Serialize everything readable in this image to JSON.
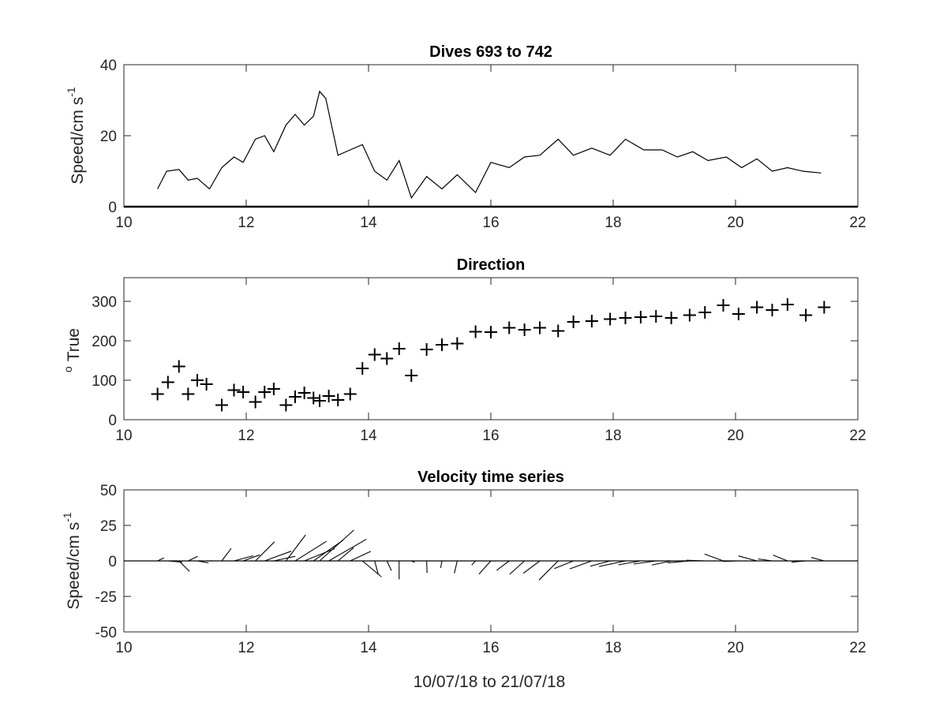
{
  "chart_data": [
    {
      "type": "line",
      "title": "Dives 693 to 742",
      "ylabel": "Speed/cm s",
      "ylabel_superscript": "-1",
      "xlim": [
        10,
        22
      ],
      "ylim": [
        0,
        40
      ],
      "xticks": [
        "10",
        "12",
        "14",
        "16",
        "18",
        "20",
        "22"
      ],
      "yticks": [
        "0",
        "20",
        "40"
      ],
      "series": [
        {
          "x": [
            10.55,
            10.7,
            10.9,
            11.05,
            11.2,
            11.4,
            11.6,
            11.8,
            11.95,
            12.15,
            12.3,
            12.45,
            12.65,
            12.8,
            12.95,
            13.1,
            13.2,
            13.3,
            13.5,
            13.7,
            13.9,
            14.1,
            14.3,
            14.5,
            14.7,
            14.95,
            15.2,
            15.45,
            15.75,
            16.0,
            16.3,
            16.55,
            16.8,
            17.1,
            17.35,
            17.65,
            17.95,
            18.2,
            18.5,
            18.8,
            19.05,
            19.3,
            19.55,
            19.85,
            20.1,
            20.35,
            20.6,
            20.85,
            21.1,
            21.4
          ],
          "y": [
            5,
            10,
            10.5,
            7.5,
            8,
            5,
            11,
            14,
            12.5,
            19,
            20,
            15.5,
            23,
            26,
            23,
            25.5,
            32.5,
            30.5,
            14.5,
            16,
            17.5,
            10,
            7.5,
            13,
            2.5,
            8.5,
            5,
            9,
            4,
            12.5,
            11,
            14,
            14.5,
            19,
            14.5,
            16.5,
            14.5,
            19,
            16,
            16,
            14,
            15.5,
            13,
            14,
            11,
            13.5,
            10,
            11,
            10,
            9.5
          ]
        }
      ]
    },
    {
      "type": "scatter",
      "title": "Direction",
      "ylabel": "True",
      "ylabel_prefix": "o",
      "xlim": [
        10,
        22
      ],
      "ylim": [
        0,
        360
      ],
      "xticks": [
        "10",
        "12",
        "14",
        "16",
        "18",
        "20",
        "22"
      ],
      "yticks": [
        "0",
        "100",
        "200",
        "300"
      ],
      "marker": "+",
      "series": [
        {
          "x": [
            10.55,
            10.72,
            10.9,
            11.05,
            11.2,
            11.35,
            11.6,
            11.8,
            11.95,
            12.15,
            12.3,
            12.45,
            12.65,
            12.8,
            12.95,
            13.1,
            13.2,
            13.35,
            13.5,
            13.7,
            13.9,
            14.1,
            14.3,
            14.5,
            14.7,
            14.95,
            15.2,
            15.45,
            15.75,
            16.0,
            16.3,
            16.55,
            16.8,
            17.1,
            17.35,
            17.65,
            17.95,
            18.2,
            18.45,
            18.7,
            18.95,
            19.25,
            19.5,
            19.8,
            20.05,
            20.35,
            20.6,
            20.85,
            21.15,
            21.45
          ],
          "y": [
            65,
            95,
            135,
            65,
            100,
            90,
            37,
            75,
            70,
            45,
            70,
            78,
            37,
            58,
            68,
            55,
            48,
            60,
            50,
            65,
            130,
            165,
            155,
            180,
            112,
            178,
            190,
            193,
            223,
            222,
            233,
            228,
            233,
            225,
            248,
            250,
            255,
            258,
            260,
            262,
            258,
            265,
            272,
            290,
            268,
            285,
            278,
            292,
            265,
            285
          ]
        }
      ]
    },
    {
      "type": "line",
      "subtype": "stick-plot",
      "title": "Velocity time series",
      "ylabel": "Speed/cm s",
      "ylabel_superscript": "-1",
      "xlabel": "10/07/18 to 21/07/18",
      "xlim": [
        10,
        22
      ],
      "ylim": [
        -50,
        50
      ],
      "xticks": [
        "10",
        "12",
        "14",
        "16",
        "18",
        "20",
        "22"
      ],
      "yticks": [
        "-50",
        "-25",
        "0",
        "25",
        "50"
      ],
      "series": [
        {
          "x": [
            10.55,
            10.72,
            10.9,
            11.05,
            11.2,
            11.35,
            11.6,
            11.8,
            11.95,
            12.15,
            12.3,
            12.45,
            12.65,
            12.8,
            12.95,
            13.1,
            13.2,
            13.35,
            13.5,
            13.7,
            13.9,
            14.1,
            14.3,
            14.5,
            14.7,
            14.95,
            15.2,
            15.45,
            15.75,
            16.0,
            16.3,
            16.55,
            16.8,
            17.1,
            17.35,
            17.65,
            17.95,
            18.2,
            18.45,
            18.7,
            18.95,
            19.25,
            19.5,
            19.8,
            20.05,
            20.35,
            20.6,
            20.85,
            21.15,
            21.45
          ],
          "speed": [
            5,
            10,
            10.5,
            7.5,
            8,
            5,
            11,
            14,
            12.5,
            19,
            20,
            15.5,
            23,
            26,
            23,
            25.5,
            32.5,
            30.5,
            14.5,
            16,
            17.5,
            10,
            7.5,
            13,
            2.5,
            8.5,
            5,
            9,
            4,
            12.5,
            11,
            14,
            14.5,
            19,
            14.5,
            16.5,
            14.5,
            19,
            16,
            16,
            14,
            15.5,
            13,
            14,
            11,
            13.5,
            10,
            11,
            10,
            9.5
          ],
          "direction": [
            65,
            95,
            135,
            65,
            100,
            90,
            37,
            75,
            70,
            45,
            70,
            78,
            37,
            58,
            68,
            55,
            48,
            60,
            50,
            65,
            130,
            165,
            155,
            180,
            112,
            178,
            190,
            193,
            223,
            222,
            233,
            228,
            233,
            225,
            248,
            250,
            255,
            258,
            260,
            262,
            258,
            265,
            272,
            290,
            268,
            285,
            278,
            292,
            265,
            285
          ]
        }
      ]
    }
  ]
}
